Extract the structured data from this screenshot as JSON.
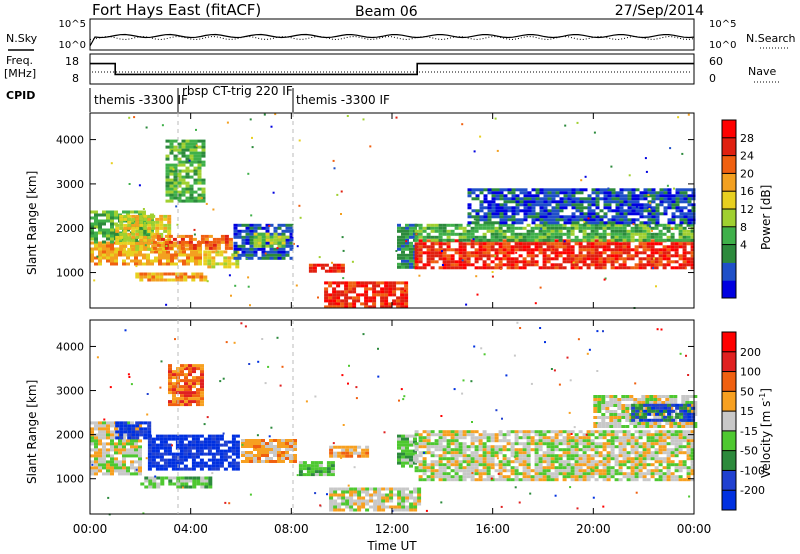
{
  "header": {
    "station": "Fort Hays East (fitACF)",
    "beam": "Beam 06",
    "date": "27/Sep/2014"
  },
  "status_panels": {
    "nsky_label": "N.Sky",
    "nsearch_label": "N.Search",
    "freq_label_line1": "Freq.",
    "freq_label_line2": "[MHz]",
    "nave_label": "Nave",
    "cpid_label": "CPID",
    "noise_left_ticks": [
      "10^5",
      "10^0"
    ],
    "noise_right_ticks": [
      "10^5",
      "10^0"
    ],
    "freq_ticks": [
      "18",
      "8"
    ],
    "nave_ticks": [
      "60",
      "0"
    ],
    "cpid_labels": [
      {
        "text": "themis -3300 IF",
        "hour": 0.1
      },
      {
        "text": "rbsp CT-trig 220 IF",
        "hour": 3.6
      },
      {
        "text": "themis -3300 IF",
        "hour": 8.0
      }
    ],
    "freq_step": [
      {
        "from_hour": 0,
        "to_hour": 1.0,
        "mhz": 15.5
      },
      {
        "from_hour": 1.0,
        "to_hour": 13.0,
        "mhz": 10.5
      },
      {
        "from_hour": 13.0,
        "to_hour": 24,
        "mhz": 15.5
      }
    ]
  },
  "chart_data": [
    {
      "type": "heatmap",
      "name": "power",
      "ylabel": "Slant Range [km]",
      "xlim": [
        0,
        24
      ],
      "ylim": [
        200,
        4600
      ],
      "yticks": [
        1000,
        2000,
        3000,
        4000
      ],
      "colorbar": {
        "label": "Power [dB]",
        "ticks": [
          "28",
          "24",
          "20",
          "16",
          "12",
          "8",
          "4"
        ],
        "colors": [
          "#0000e0",
          "#1f50c8",
          "#2c8a3c",
          "#3fb04a",
          "#a0d030",
          "#e8d020",
          "#f3a020",
          "#f06010",
          "#e02010",
          "#ff0000"
        ]
      },
      "bands": [
        {
          "x0": 0.0,
          "x1": 4.4,
          "r0": 1200,
          "r1": 1700,
          "c": 6
        },
        {
          "x0": 0.0,
          "x1": 2.5,
          "r0": 1700,
          "r1": 2400,
          "c": 3
        },
        {
          "x0": 1.0,
          "x1": 3.2,
          "r0": 1500,
          "r1": 2300,
          "c": 5
        },
        {
          "x0": 1.8,
          "x1": 4.6,
          "r0": 800,
          "r1": 1000,
          "c": 6
        },
        {
          "x0": 2.5,
          "x1": 5.6,
          "r0": 1550,
          "r1": 1850,
          "c": 7
        },
        {
          "x0": 4.5,
          "x1": 5.9,
          "r0": 1100,
          "r1": 1500,
          "c": 5
        },
        {
          "x0": 3.0,
          "x1": 4.5,
          "r0": 2600,
          "r1": 4000,
          "c": 3
        },
        {
          "x0": 5.7,
          "x1": 8.0,
          "r0": 1300,
          "r1": 2100,
          "c": 1
        },
        {
          "x0": 6.5,
          "x1": 7.8,
          "r0": 1600,
          "r1": 1900,
          "c": 4
        },
        {
          "x0": 8.7,
          "x1": 10.0,
          "r0": 1000,
          "r1": 1200,
          "c": 8
        },
        {
          "x0": 9.3,
          "x1": 12.5,
          "r0": 250,
          "r1": 800,
          "c": 8
        },
        {
          "x0": 12.2,
          "x1": 12.9,
          "r0": 1100,
          "r1": 2100,
          "c": 2
        },
        {
          "x0": 12.9,
          "x1": 24.0,
          "r0": 1100,
          "r1": 1750,
          "c": 8
        },
        {
          "x0": 12.9,
          "x1": 24.0,
          "r0": 1750,
          "r1": 2100,
          "c": 3
        },
        {
          "x0": 15.0,
          "x1": 24.0,
          "r0": 2100,
          "r1": 2900,
          "c": 1
        }
      ]
    },
    {
      "type": "heatmap",
      "name": "velocity",
      "ylabel": "Slant Range [km]",
      "xlabel": "Time UT",
      "xlim": [
        0,
        24
      ],
      "ylim": [
        200,
        4600
      ],
      "yticks": [
        1000,
        2000,
        3000,
        4000
      ],
      "xticks": [
        "00:00",
        "04:00",
        "08:00",
        "12:00",
        "16:00",
        "20:00",
        "00:00"
      ],
      "colorbar": {
        "label_main": "Velocity [m s",
        "label_sup": "-1",
        "label_end": "]",
        "ticks": [
          "200",
          "100",
          "50",
          "15",
          "-15",
          "-50",
          "-100",
          "-200"
        ],
        "colors": [
          "#0030e0",
          "#2040d0",
          "#2c8a3c",
          "#4ec830",
          "#c8c8c8",
          "#f7a020",
          "#f06010",
          "#e02020",
          "#ff0000"
        ]
      },
      "bands": [
        {
          "x0": 0.0,
          "x1": 2.0,
          "r0": 1100,
          "r1": 2300,
          "c": 4
        },
        {
          "x0": 1.0,
          "x1": 2.4,
          "r0": 1900,
          "r1": 2300,
          "c": 0
        },
        {
          "x0": 2.3,
          "x1": 5.9,
          "r0": 1250,
          "r1": 2000,
          "c": 0
        },
        {
          "x0": 2.0,
          "x1": 4.8,
          "r0": 800,
          "r1": 1050,
          "c": 3
        },
        {
          "x0": 3.1,
          "x1": 4.5,
          "r0": 2700,
          "r1": 3600,
          "c": 6
        },
        {
          "x0": 6.0,
          "x1": 8.2,
          "r0": 1400,
          "r1": 1900,
          "c": 5
        },
        {
          "x0": 8.3,
          "x1": 9.6,
          "r0": 1100,
          "r1": 1400,
          "c": 3
        },
        {
          "x0": 9.5,
          "x1": 11.0,
          "r0": 1500,
          "r1": 1750,
          "c": 5
        },
        {
          "x0": 9.5,
          "x1": 13.0,
          "r0": 300,
          "r1": 800,
          "c": 4
        },
        {
          "x0": 12.2,
          "x1": 12.9,
          "r0": 1300,
          "r1": 2000,
          "c": 3
        },
        {
          "x0": 12.9,
          "x1": 24.0,
          "r0": 1000,
          "r1": 2100,
          "c": 4
        },
        {
          "x0": 20.0,
          "x1": 24.0,
          "r0": 2200,
          "r1": 2900,
          "c": 4
        },
        {
          "x0": 21.5,
          "x1": 24.0,
          "r0": 2300,
          "r1": 2700,
          "c": 1
        }
      ]
    }
  ]
}
